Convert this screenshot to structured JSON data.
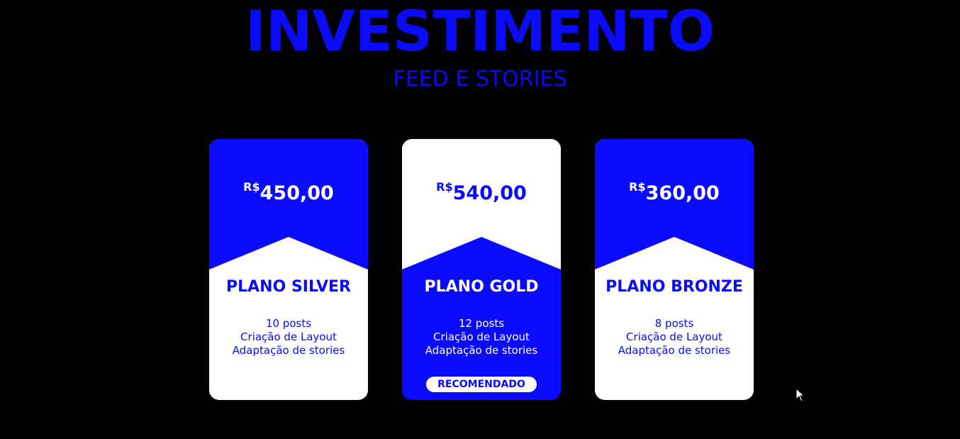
{
  "header": {
    "title": "INVESTIMENTO",
    "subtitle": "FEED E STORIES"
  },
  "colors": {
    "accent": "#0a0aff",
    "background": "#000000",
    "card_light": "#ffffff"
  },
  "plans": [
    {
      "currency": "R$",
      "price": "450,00",
      "name": "PLANO SILVER",
      "features": [
        "10 posts",
        "Criação de Layout",
        "Adaptação de stories"
      ]
    },
    {
      "currency": "R$",
      "price": "540,00",
      "name": "PLANO GOLD",
      "features": [
        "12 posts",
        "Criação de Layout",
        "Adaptação de stories"
      ],
      "badge": "RECOMENDADO"
    },
    {
      "currency": "R$",
      "price": "360,00",
      "name": "PLANO BRONZE",
      "features": [
        "8 posts",
        "Criação de Layout",
        "Adaptação de stories"
      ]
    }
  ],
  "cursor": {
    "icon": "mouse-pointer-icon"
  }
}
